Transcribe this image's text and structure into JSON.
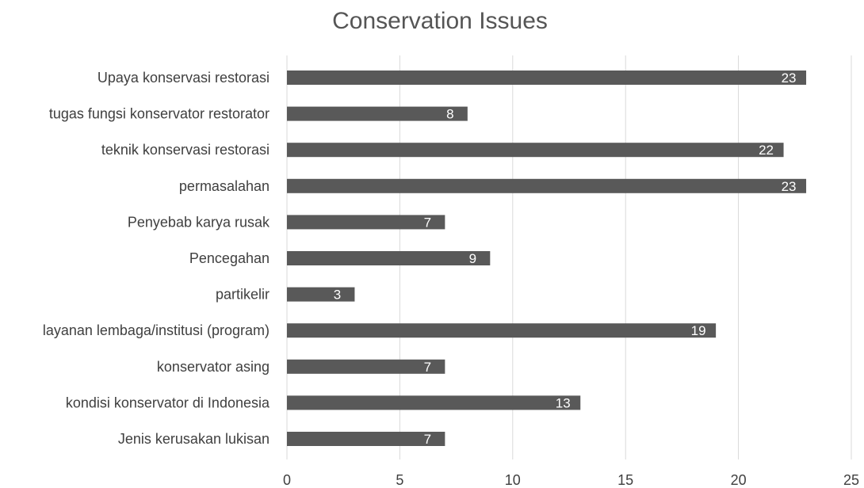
{
  "chart_data": {
    "type": "bar",
    "orientation": "horizontal",
    "title": "Conservation Issues",
    "xlabel": "",
    "ylabel": "",
    "categories": [
      "Upaya konservasi restorasi",
      "tugas fungsi konservator restorator",
      "teknik konservasi restorasi",
      "permasalahan",
      "Penyebab karya rusak",
      "Pencegahan",
      "partikelir",
      "layanan lembaga/institusi (program)",
      "konservator asing",
      "kondisi konservator di Indonesia",
      "Jenis kerusakan lukisan"
    ],
    "values": [
      23,
      8,
      22,
      23,
      7,
      9,
      3,
      19,
      7,
      13,
      7
    ],
    "xlim": [
      0,
      25
    ],
    "xticks": [
      0,
      5,
      10,
      15,
      20,
      25
    ],
    "data_labels": true,
    "grid": true,
    "bar_color": "#595959",
    "label_color": "#ffffff"
  }
}
